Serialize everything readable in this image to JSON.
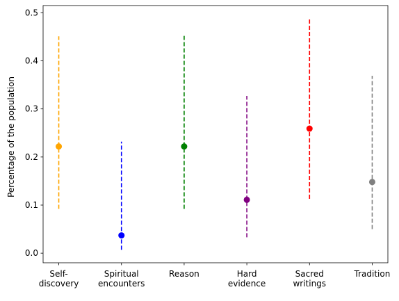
{
  "chart_data": {
    "type": "scatter",
    "title": "",
    "xlabel": "",
    "ylabel": "Percentage of the population",
    "ylim": [
      -0.02,
      0.515
    ],
    "yticks": [
      0.0,
      0.1,
      0.2,
      0.3,
      0.4,
      0.5
    ],
    "ytick_labels": [
      "0.0",
      "0.1",
      "0.2",
      "0.3",
      "0.4",
      "0.5"
    ],
    "grid": false,
    "legend": "none",
    "categories": [
      [
        "Self-",
        "discovery"
      ],
      [
        "Spiritual",
        "encounters"
      ],
      [
        "Reason"
      ],
      [
        "Hard",
        "evidence"
      ],
      [
        "Sacred",
        "writings"
      ],
      [
        "Tradition"
      ]
    ],
    "points": [
      {
        "value": 0.222,
        "low": 0.092,
        "high": 0.451,
        "color": "#ffa500"
      },
      {
        "value": 0.037,
        "low": 0.007,
        "high": 0.232,
        "color": "#0000ff"
      },
      {
        "value": 0.222,
        "low": 0.092,
        "high": 0.452,
        "color": "#008000"
      },
      {
        "value": 0.111,
        "low": 0.033,
        "high": 0.327,
        "color": "#800080"
      },
      {
        "value": 0.259,
        "low": 0.113,
        "high": 0.49,
        "color": "#ff0000"
      },
      {
        "value": 0.148,
        "low": 0.05,
        "high": 0.369,
        "color": "#808080"
      }
    ]
  }
}
